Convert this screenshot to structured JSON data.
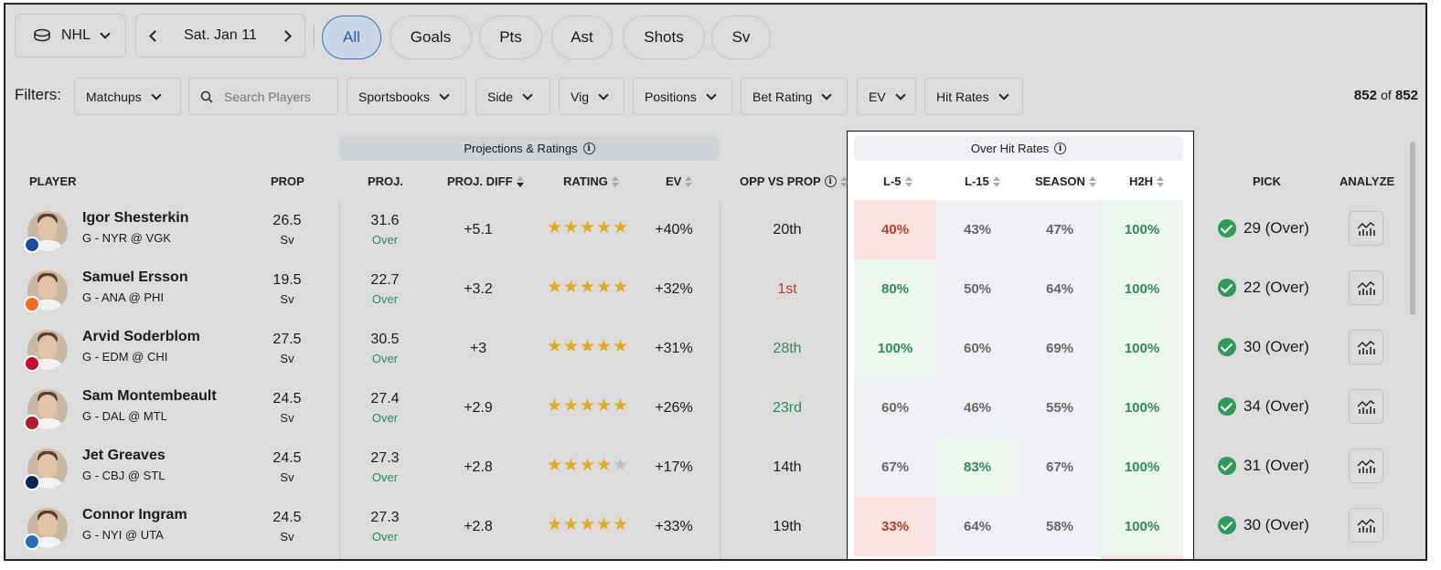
{
  "topbar": {
    "league": "NHL",
    "date": "Sat. Jan 11",
    "pills": [
      "All",
      "Goals",
      "Pts",
      "Ast",
      "Shots",
      "Sv"
    ]
  },
  "filters": {
    "label": "Filters:",
    "matchups": "Matchups",
    "search_placeholder": "Search Players",
    "sportsbooks": "Sportsbooks",
    "side": "Side",
    "vig": "Vig",
    "positions": "Positions",
    "bet_rating": "Bet Rating",
    "ev": "EV",
    "hit_rates": "Hit Rates",
    "count": "852",
    "count_of": "of",
    "count_total": "852"
  },
  "groups": {
    "projections": "Projections & Ratings",
    "hit_rates": "Over Hit Rates"
  },
  "columns": {
    "player": "PLAYER",
    "prop": "PROP",
    "proj": "PROJ.",
    "proj_diff": "PROJ. DIFF",
    "rating": "RATING",
    "ev": "EV",
    "opp": "OPP VS PROP",
    "l5": "L-5",
    "l15": "L-15",
    "season": "SEASON",
    "h2h": "H2H",
    "pick": "PICK",
    "analyze": "ANALYZE"
  },
  "rows": [
    {
      "name": "Igor Shesterkin",
      "matchup": "G - NYR @ VGK",
      "prop": "26.5",
      "prop_unit": "Sv",
      "proj": "31.6",
      "proj_side": "Over",
      "diff": "+5.1",
      "stars": 5,
      "ev": "+40%",
      "opp": "20th",
      "opp_tone": "neutral",
      "l5": "40%",
      "l15": "43%",
      "season": "47%",
      "h2h": "100%",
      "pick": "29 (Over)",
      "logo_color": "#1a4fa0"
    },
    {
      "name": "Samuel Ersson",
      "matchup": "G - ANA @ PHI",
      "prop": "19.5",
      "prop_unit": "Sv",
      "proj": "22.7",
      "proj_side": "Over",
      "diff": "+3.2",
      "stars": 5,
      "ev": "+32%",
      "opp": "1st",
      "opp_tone": "bad",
      "l5": "80%",
      "l15": "50%",
      "season": "64%",
      "h2h": "100%",
      "pick": "22 (Over)",
      "logo_color": "#f26b21"
    },
    {
      "name": "Arvid Soderblom",
      "matchup": "G - EDM @ CHI",
      "prop": "27.5",
      "prop_unit": "Sv",
      "proj": "30.5",
      "proj_side": "Over",
      "diff": "+3",
      "stars": 5,
      "ev": "+31%",
      "opp": "28th",
      "opp_tone": "good",
      "l5": "100%",
      "l15": "60%",
      "season": "69%",
      "h2h": "100%",
      "pick": "30 (Over)",
      "logo_color": "#c8102e"
    },
    {
      "name": "Sam Montembeault",
      "matchup": "G - DAL @ MTL",
      "prop": "24.5",
      "prop_unit": "Sv",
      "proj": "27.4",
      "proj_side": "Over",
      "diff": "+2.9",
      "stars": 5,
      "ev": "+26%",
      "opp": "23rd",
      "opp_tone": "good",
      "l5": "60%",
      "l15": "46%",
      "season": "55%",
      "h2h": "100%",
      "pick": "34 (Over)",
      "logo_color": "#af1e2d"
    },
    {
      "name": "Jet Greaves",
      "matchup": "G - CBJ @ STL",
      "prop": "24.5",
      "prop_unit": "Sv",
      "proj": "27.3",
      "proj_side": "Over",
      "diff": "+2.8",
      "stars": 4,
      "ev": "+17%",
      "opp": "14th",
      "opp_tone": "neutral",
      "l5": "67%",
      "l15": "83%",
      "season": "67%",
      "h2h": "100%",
      "pick": "31 (Over)",
      "logo_color": "#002654"
    },
    {
      "name": "Connor Ingram",
      "matchup": "G - NYI @ UTA",
      "prop": "24.5",
      "prop_unit": "Sv",
      "proj": "27.3",
      "proj_side": "Over",
      "diff": "+2.8",
      "stars": 5,
      "ev": "+33%",
      "opp": "19th",
      "opp_tone": "neutral",
      "l5": "33%",
      "l15": "64%",
      "season": "58%",
      "h2h": "100%",
      "pick": "30 (Over)",
      "logo_color": "#2a6fb5"
    }
  ],
  "hit_colors": {
    "good_bg": "#eef7ef",
    "bad_bg": "#fbe3e1",
    "neutral_bg": "#eef0f3",
    "good_fg": "#2e8b57",
    "bad_fg": "#c0392b",
    "neutral_fg": "#666666"
  }
}
